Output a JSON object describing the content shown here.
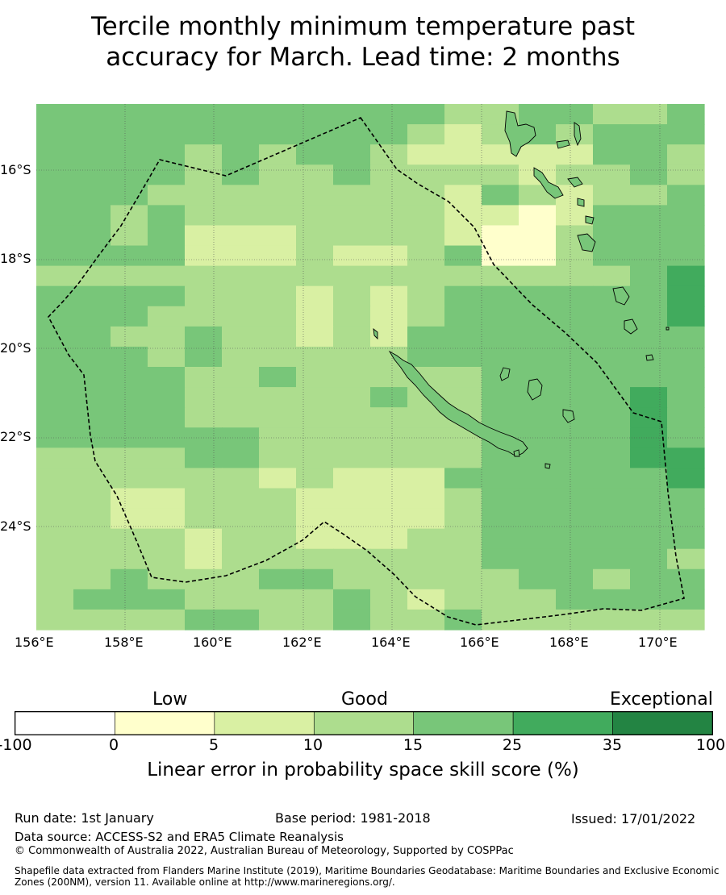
{
  "title": {
    "line1": "Tercile monthly minimum temperature past",
    "line2": "accuracy for March. Lead time: 2 months"
  },
  "map": {
    "lat_labels": [
      "16°S",
      "18°S",
      "20°S",
      "22°S",
      "24°S"
    ],
    "lon_labels": [
      "156°E",
      "158°E",
      "160°E",
      "162°E",
      "164°E",
      "166°E",
      "168°E",
      "170°E"
    ],
    "boundary": "dashed exclusive economic zone outline",
    "grid_values": [
      [
        4,
        4,
        4,
        4,
        4,
        4,
        4,
        4,
        4,
        4,
        4,
        3,
        3,
        4,
        4,
        3,
        3,
        4
      ],
      [
        4,
        4,
        4,
        4,
        4,
        4,
        4,
        4,
        4,
        4,
        3,
        2,
        3,
        4,
        3,
        4,
        4,
        4
      ],
      [
        4,
        4,
        4,
        4,
        3,
        4,
        3,
        4,
        4,
        3,
        2,
        2,
        2,
        2,
        2,
        4,
        4,
        3
      ],
      [
        4,
        4,
        4,
        4,
        3,
        4,
        3,
        3,
        4,
        3,
        3,
        3,
        3,
        2,
        3,
        3,
        4,
        3
      ],
      [
        4,
        4,
        4,
        3,
        3,
        3,
        3,
        3,
        3,
        3,
        3,
        2,
        4,
        3,
        2,
        3,
        3,
        4
      ],
      [
        4,
        4,
        3,
        4,
        3,
        3,
        3,
        3,
        3,
        3,
        3,
        2,
        2,
        1,
        2,
        4,
        4,
        4
      ],
      [
        4,
        4,
        3,
        4,
        2,
        2,
        2,
        3,
        3,
        3,
        3,
        2,
        1,
        1,
        3,
        4,
        4,
        4
      ],
      [
        4,
        4,
        4,
        4,
        2,
        2,
        2,
        3,
        2,
        2,
        3,
        4,
        1,
        1,
        3,
        4,
        4,
        4
      ],
      [
        3,
        3,
        3,
        3,
        3,
        3,
        3,
        3,
        3,
        3,
        3,
        3,
        3,
        3,
        3,
        3,
        4,
        5
      ],
      [
        4,
        4,
        4,
        4,
        3,
        3,
        3,
        2,
        3,
        2,
        3,
        4,
        4,
        4,
        4,
        4,
        4,
        5
      ],
      [
        4,
        4,
        4,
        3,
        3,
        3,
        3,
        2,
        3,
        2,
        3,
        4,
        4,
        4,
        4,
        4,
        4,
        5
      ],
      [
        4,
        4,
        3,
        3,
        4,
        3,
        3,
        2,
        3,
        2,
        4,
        4,
        4,
        4,
        4,
        4,
        4,
        4
      ],
      [
        4,
        4,
        4,
        3,
        4,
        3,
        3,
        3,
        3,
        3,
        4,
        4,
        4,
        4,
        4,
        4,
        4,
        4
      ],
      [
        4,
        4,
        4,
        4,
        3,
        3,
        4,
        3,
        3,
        3,
        3,
        3,
        4,
        4,
        4,
        4,
        4,
        4
      ],
      [
        4,
        4,
        4,
        4,
        3,
        3,
        3,
        3,
        3,
        4,
        3,
        3,
        4,
        4,
        4,
        4,
        5,
        4
      ],
      [
        4,
        4,
        4,
        4,
        3,
        3,
        3,
        3,
        3,
        3,
        3,
        3,
        4,
        4,
        4,
        4,
        5,
        4
      ],
      [
        4,
        4,
        4,
        4,
        4,
        4,
        3,
        3,
        3,
        3,
        3,
        3,
        4,
        4,
        4,
        4,
        5,
        4
      ],
      [
        3,
        3,
        3,
        3,
        4,
        4,
        3,
        3,
        3,
        3,
        3,
        3,
        4,
        4,
        4,
        4,
        5,
        5
      ],
      [
        3,
        3,
        3,
        3,
        3,
        3,
        2,
        3,
        2,
        2,
        2,
        4,
        4,
        4,
        4,
        4,
        4,
        5
      ],
      [
        3,
        3,
        2,
        2,
        3,
        3,
        3,
        2,
        2,
        2,
        2,
        3,
        4,
        4,
        4,
        4,
        4,
        4
      ],
      [
        3,
        3,
        2,
        2,
        3,
        3,
        3,
        2,
        2,
        2,
        2,
        3,
        4,
        4,
        4,
        4,
        4,
        4
      ],
      [
        3,
        3,
        3,
        3,
        2,
        3,
        3,
        2,
        2,
        2,
        3,
        3,
        4,
        4,
        4,
        4,
        4,
        4
      ],
      [
        3,
        3,
        3,
        3,
        2,
        3,
        3,
        3,
        3,
        3,
        3,
        3,
        4,
        4,
        4,
        4,
        4,
        3
      ],
      [
        3,
        3,
        4,
        3,
        3,
        3,
        4,
        4,
        3,
        3,
        3,
        3,
        3,
        4,
        4,
        3,
        4,
        4
      ],
      [
        3,
        4,
        4,
        4,
        3,
        3,
        3,
        3,
        4,
        3,
        2,
        3,
        3,
        3,
        4,
        4,
        4,
        4
      ],
      [
        3,
        3,
        3,
        3,
        4,
        4,
        3,
        3,
        4,
        3,
        3,
        4,
        3,
        3,
        3,
        3,
        3,
        3
      ]
    ]
  },
  "colorbar": {
    "category_labels": [
      "Low",
      "Good",
      "Exceptional"
    ],
    "ticks": [
      "-100",
      "0",
      "5",
      "10",
      "15",
      "25",
      "35",
      "100"
    ],
    "colors": [
      "#ffffff",
      "#ffffcc",
      "#d9f0a3",
      "#addd8e",
      "#78c679",
      "#41ab5d",
      "#238443"
    ],
    "title": "Linear error in probability space skill score (%)"
  },
  "footer": {
    "run_date": "Run date: 1st January",
    "base_period": "Base period: 1981-2018",
    "issued": "Issued: 17/01/2022",
    "data_source": "Data source: ACCESS-S2 and ERA5 Climate Reanalysis",
    "copyright": "© Commonwealth of Australia 2022, Australian Bureau of Meteorology, Supported by COSPPac",
    "shapefile_line1": "Shapefile data extracted from Flanders Marine Institute (2019), Maritime Boundaries Geodatabase: Maritime Boundaries and Exclusive Economic",
    "shapefile_line2": "Zones (200NM), version 11. Available online at http://www.marineregions.org/."
  }
}
